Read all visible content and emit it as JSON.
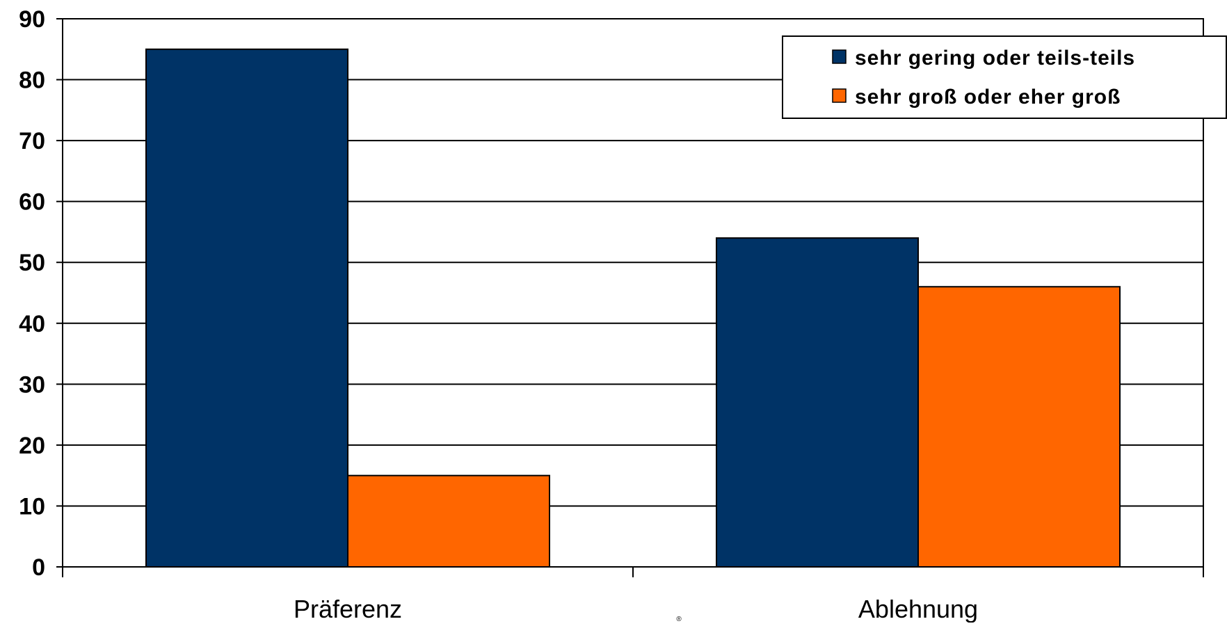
{
  "chart_data": {
    "type": "bar",
    "categories": [
      "Präferenz",
      "Ablehnung"
    ],
    "series": [
      {
        "name": "sehr gering oder teils-teils",
        "values": [
          85,
          54
        ],
        "color": "#003366"
      },
      {
        "name": "sehr groß oder eher groß",
        "values": [
          15,
          46
        ],
        "color": "#FF6600"
      }
    ],
    "ylim": [
      0,
      90
    ],
    "yticks": [
      0,
      10,
      20,
      30,
      40,
      50,
      60,
      70,
      80,
      90
    ],
    "grid": true,
    "legend_position": "top-right",
    "xlabel": "",
    "ylabel": "",
    "title": ""
  },
  "footer_mark": "®"
}
